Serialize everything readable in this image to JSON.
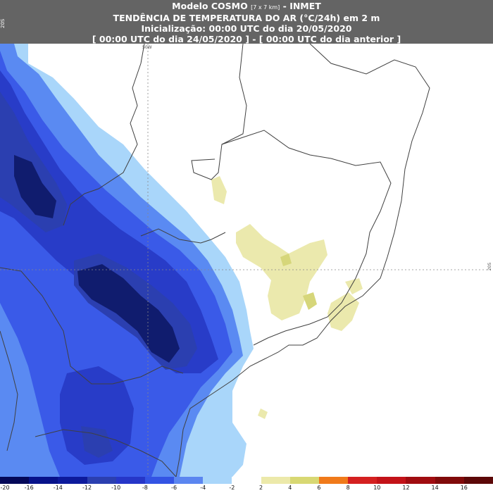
{
  "header": {
    "title_main": "Modelo COSMO",
    "title_small": "[7 x 7 km]",
    "title_suffix": "- INMET",
    "line2": "TENDÊNCIA DE TEMPERATURA DO AR (°C/24h) em 2 m",
    "line3": "Inicialização: 00:00 UTC do dia 20/05/2020",
    "line4": "[ 00:00 UTC do dia 24/05/2020 ] - [ 00:00 UTC do dia anterior ]"
  },
  "map": {
    "corner_label": "20S",
    "grid_labels": {
      "lon_top": "50W",
      "lat_right": "20S"
    },
    "colors": {
      "neg_20_16": "#0a1050",
      "neg_16_14": "#101c6e",
      "neg_14_12": "#1e2c98",
      "neg_12_10": "#2b3fb0",
      "neg_10_8": "#283cc8",
      "neg_8_6": "#3a5ae8",
      "neg_6_4": "#5a8af2",
      "neg_4_2": "#a9d6fa",
      "neutral": "#ffffff",
      "pos_2_4": "#ebe9ad",
      "pos_4_6": "#d6d67a",
      "border": "#404040"
    }
  },
  "legend": {
    "colors": [
      "#040858",
      "#07128a",
      "#0d1a9c",
      "#2b3fb0",
      "#2636c8",
      "#3354e4",
      "#5b86f0",
      "#a9d6fa",
      "#ffffff",
      "#ece9aa",
      "#d8d873",
      "#f07a1a",
      "#d42020",
      "#c31218",
      "#a00c10",
      "#800a0a",
      "#5c0808"
    ],
    "ticks": [
      "-20",
      "-16",
      "-14",
      "-12",
      "-10",
      "-8",
      "-6",
      "-4",
      "-2",
      "2",
      "4",
      "6",
      "8",
      "10",
      "12",
      "14",
      "16"
    ]
  }
}
